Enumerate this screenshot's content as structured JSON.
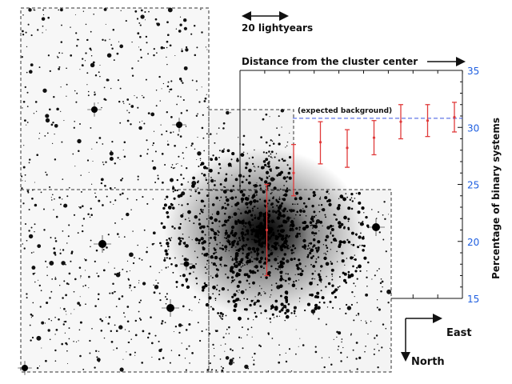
{
  "scale_bar": {
    "label": "20 lightyears"
  },
  "compass": {
    "east": "East",
    "north": "North"
  },
  "colors": {
    "error_bar": "#e03a3a",
    "background_line": "#3a55e0",
    "axis_numbers": "#1f5fe0",
    "ink": "#111111"
  },
  "chart_data": {
    "type": "scatter",
    "title": "",
    "xlabel": "Distance from the cluster center",
    "ylabel": "Percentage of binary systems",
    "y_axis_side": "right",
    "ylim": [
      15,
      35
    ],
    "yticks": [
      15,
      20,
      25,
      30,
      35
    ],
    "x_ticks_count": 9,
    "grid": false,
    "series": [
      {
        "points": [
          {
            "x": 1,
            "y": 21,
            "low": 17,
            "high": 25
          },
          {
            "x": 2,
            "y": 26,
            "low": 24,
            "high": 28.5
          },
          {
            "x": 3,
            "y": 28.7,
            "low": 26.8,
            "high": 30.5
          },
          {
            "x": 4,
            "y": 28.2,
            "low": 26.5,
            "high": 29.8
          },
          {
            "x": 5,
            "y": 29.1,
            "low": 27.6,
            "high": 30.6
          },
          {
            "x": 6,
            "y": 30.5,
            "low": 29,
            "high": 32
          },
          {
            "x": 7,
            "y": 30.6,
            "low": 29.2,
            "high": 32
          },
          {
            "x": 8,
            "y": 30.9,
            "low": 29.6,
            "high": 32.2
          }
        ]
      }
    ],
    "reference_line": {
      "y": 30.8,
      "label": "(expected background)",
      "style": "dashed"
    }
  }
}
